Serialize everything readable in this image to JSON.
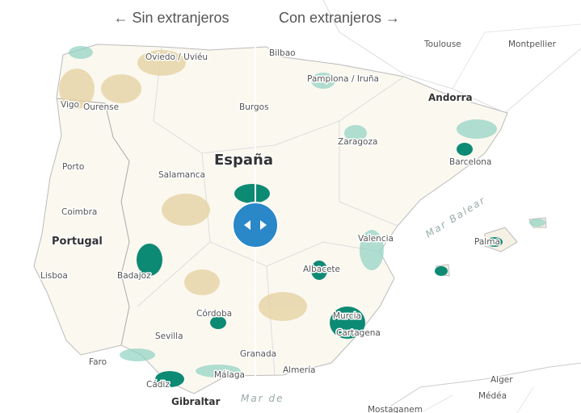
{
  "header": {
    "left": "← Sin extranjeros",
    "right": "Con extranjeros →"
  },
  "map": {
    "countries": [
      "España",
      "Portugal",
      "Andorra",
      "Gibraltar"
    ],
    "cities": [
      "Toulouse",
      "Montpellier",
      "Bilbao",
      "Oviedo / Uviéu",
      "Pamplona / Iruña",
      "Vigo",
      "Ourense",
      "Burgos",
      "Zaragoza",
      "Porto",
      "Salamanca",
      "Barcelona",
      "Coimbra",
      "Valencia",
      "Palma",
      "Lisboa",
      "Badajoz",
      "Albacete",
      "Murcia",
      "Cartagena",
      "Córdoba",
      "Sevilla",
      "Faro",
      "Granada",
      "Almería",
      "Málaga",
      "Cádiz",
      "Alger",
      "Médéa",
      "Mostaganem"
    ],
    "seas": [
      "Mar Balear",
      "Mar de"
    ]
  }
}
